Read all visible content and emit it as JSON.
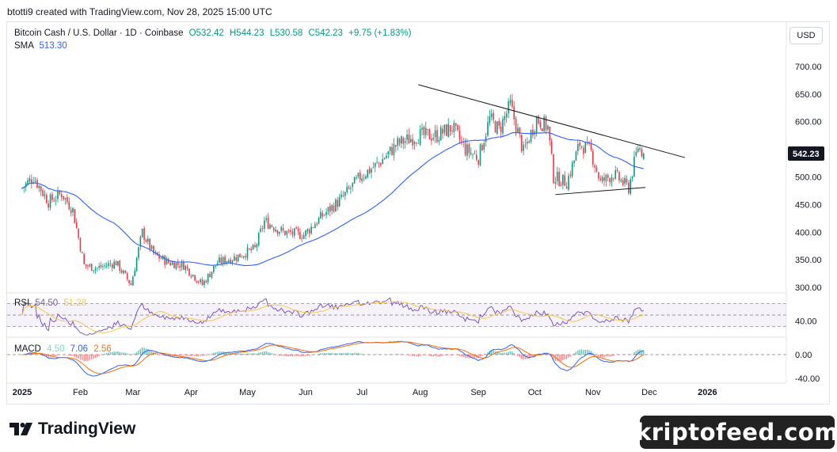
{
  "header": {
    "created_by": "btotti9 created with TradingView.com, Nov 28, 2025 15:00 UTC"
  },
  "currency": "USD",
  "legend": {
    "symbol": "Bitcoin Cash / U.S. Dollar · 1D · Coinbase",
    "open": "O532.42",
    "high": "H544.23",
    "low": "L530.58",
    "close": "C542.23",
    "change": "+9.75 (+1.83%)",
    "sma_label": "SMA",
    "sma_value": "513.30"
  },
  "rsi": {
    "label": "RSI",
    "value": "54.50",
    "ma": "51.28"
  },
  "macd": {
    "label": "MACD",
    "histogram": "4.50",
    "macd": "7.06",
    "signal": "2.56"
  },
  "branding": {
    "logo_text": "TradingView",
    "watermark": "kriptofeed.com"
  },
  "colors": {
    "up": "#089981",
    "down": "#f23645",
    "sma": "#2962ff",
    "rsi": "#7e57c2",
    "rsi_ma": "#f7c64a",
    "macd_signal": "#ff6d00",
    "trendline": "#131722",
    "price_tag": "#131722"
  },
  "chart_data": {
    "type": "candlestick",
    "price_axis": {
      "ticks": [
        "700.00",
        "650.00",
        "600.00",
        "550.00",
        "500.00",
        "450.00",
        "400.00",
        "350.00",
        "300.00"
      ],
      "last_price": "542.23",
      "ylim": [
        290,
        720
      ]
    },
    "rsi_axis": {
      "ticks": [
        "40.00"
      ],
      "band": [
        30,
        70
      ]
    },
    "macd_axis": {
      "ticks": [
        "0.00",
        "-40.00"
      ]
    },
    "x_axis": {
      "ticks": [
        "2025",
        "Feb",
        "Mar",
        "Apr",
        "May",
        "Jun",
        "Jul",
        "Aug",
        "Sep",
        "Oct",
        "Nov",
        "Dec",
        "2026"
      ]
    },
    "close_path": [
      {
        "date": "2025-01-01",
        "close": 480
      },
      {
        "date": "2025-01-07",
        "close": 500
      },
      {
        "date": "2025-01-15",
        "close": 455
      },
      {
        "date": "2025-01-22",
        "close": 470
      },
      {
        "date": "2025-01-28",
        "close": 440
      },
      {
        "date": "2025-02-03",
        "close": 340
      },
      {
        "date": "2025-02-10",
        "close": 335
      },
      {
        "date": "2025-02-20",
        "close": 345
      },
      {
        "date": "2025-02-28",
        "close": 305
      },
      {
        "date": "2025-03-06",
        "close": 400
      },
      {
        "date": "2025-03-12",
        "close": 360
      },
      {
        "date": "2025-03-20",
        "close": 345
      },
      {
        "date": "2025-03-28",
        "close": 340
      },
      {
        "date": "2025-04-07",
        "close": 305
      },
      {
        "date": "2025-04-15",
        "close": 345
      },
      {
        "date": "2025-04-25",
        "close": 355
      },
      {
        "date": "2025-05-05",
        "close": 370
      },
      {
        "date": "2025-05-10",
        "close": 420
      },
      {
        "date": "2025-05-20",
        "close": 400
      },
      {
        "date": "2025-05-31",
        "close": 395
      },
      {
        "date": "2025-06-10",
        "close": 430
      },
      {
        "date": "2025-06-20",
        "close": 460
      },
      {
        "date": "2025-06-30",
        "close": 500
      },
      {
        "date": "2025-07-10",
        "close": 525
      },
      {
        "date": "2025-07-20",
        "close": 560
      },
      {
        "date": "2025-07-31",
        "close": 575
      },
      {
        "date": "2025-08-10",
        "close": 575
      },
      {
        "date": "2025-08-18",
        "close": 590
      },
      {
        "date": "2025-08-25",
        "close": 550
      },
      {
        "date": "2025-09-01",
        "close": 535
      },
      {
        "date": "2025-09-07",
        "close": 605
      },
      {
        "date": "2025-09-12",
        "close": 585
      },
      {
        "date": "2025-09-18",
        "close": 630
      },
      {
        "date": "2025-09-25",
        "close": 545
      },
      {
        "date": "2025-10-02",
        "close": 605
      },
      {
        "date": "2025-10-08",
        "close": 590
      },
      {
        "date": "2025-10-11",
        "close": 500
      },
      {
        "date": "2025-10-18",
        "close": 490
      },
      {
        "date": "2025-10-25",
        "close": 560
      },
      {
        "date": "2025-10-31",
        "close": 545
      },
      {
        "date": "2025-11-05",
        "close": 490
      },
      {
        "date": "2025-11-12",
        "close": 505
      },
      {
        "date": "2025-11-20",
        "close": 480
      },
      {
        "date": "2025-11-25",
        "close": 555
      },
      {
        "date": "2025-11-28",
        "close": 542.23
      }
    ]
  }
}
